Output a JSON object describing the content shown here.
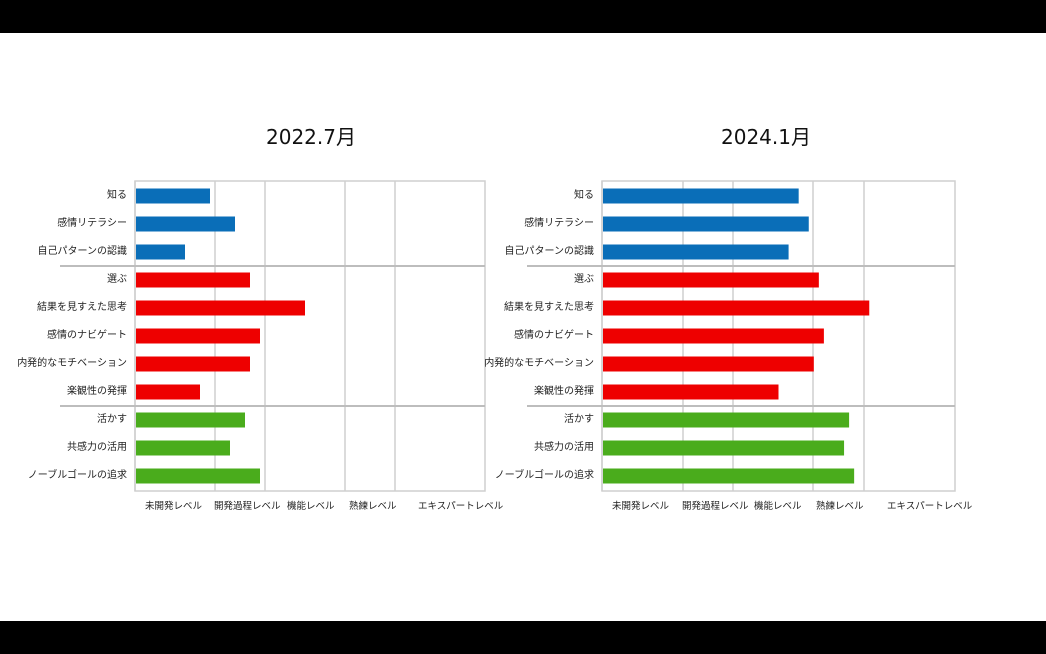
{
  "chart_data": [
    {
      "type": "bar",
      "orientation": "horizontal",
      "title": "2022.7月",
      "categories": [
        "知る",
        "感情リテラシー",
        "自己パターンの認識",
        "選ぶ",
        "結果を見すえた思考",
        "感情のナビゲート",
        "内発的なモチベーション",
        "楽観性の発揮",
        "活かす",
        "共感力の活用",
        "ノーブルゴールの追求"
      ],
      "values": [
        1.5,
        2.0,
        1.0,
        2.3,
        3.4,
        2.5,
        2.3,
        1.3,
        2.2,
        1.9,
        2.5
      ],
      "bar_colors": [
        "#0a6eb8",
        "#0a6eb8",
        "#0a6eb8",
        "#ee0000",
        "#ee0000",
        "#ee0000",
        "#ee0000",
        "#ee0000",
        "#4aac1c",
        "#4aac1c",
        "#4aac1c"
      ],
      "x_tick_labels": [
        "未開発レベル",
        "開発過程レベル",
        "機能レベル",
        "熟練レベル",
        "エキスパートレベル"
      ],
      "xlim": [
        0,
        7
      ],
      "grid": true,
      "group_dividers_after": [
        2,
        7
      ]
    },
    {
      "type": "bar",
      "orientation": "horizontal",
      "title": "2024.1月",
      "categories": [
        "知る",
        "感情リテラシー",
        "自己パターンの認識",
        "選ぶ",
        "結果を見すえた思考",
        "感情のナビゲート",
        "内発的なモチベーション",
        "楽観性の発揮",
        "活かす",
        "共感力の活用",
        "ノーブルゴールの追求"
      ],
      "values": [
        3.9,
        4.1,
        3.7,
        4.3,
        5.3,
        4.4,
        4.2,
        3.5,
        4.9,
        4.8,
        5.0
      ],
      "bar_colors": [
        "#0a6eb8",
        "#0a6eb8",
        "#0a6eb8",
        "#ee0000",
        "#ee0000",
        "#ee0000",
        "#ee0000",
        "#ee0000",
        "#4aac1c",
        "#4aac1c",
        "#4aac1c"
      ],
      "x_tick_labels": [
        "未開発レベル",
        "開発過程レベル",
        "機能レベル",
        "熟練レベル",
        "エキスパートレベル"
      ],
      "xlim": [
        0,
        7
      ],
      "grid": true,
      "group_dividers_after": [
        2,
        7
      ]
    }
  ]
}
